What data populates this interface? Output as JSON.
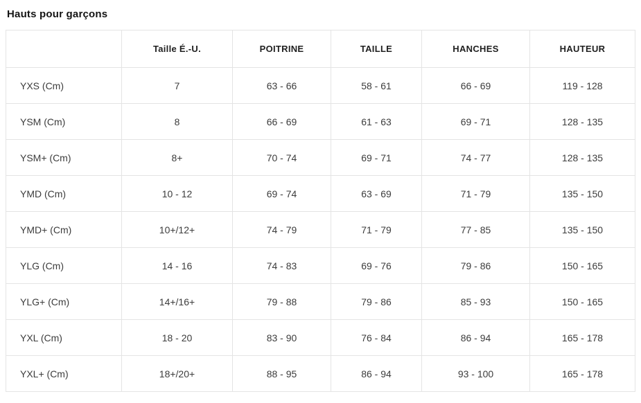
{
  "page": {
    "title": "Hauts pour garçons"
  },
  "colors": {
    "border": "#e4e4e4",
    "heading_text": "#141414",
    "header_text": "#1f1f1f",
    "cell_text": "#3c3c3c",
    "background": "#ffffff"
  },
  "table": {
    "columns": [
      "",
      "Taille É.-U.",
      "POITRINE",
      "TAILLE",
      "HANCHES",
      "HAUTEUR"
    ],
    "rows": [
      {
        "cells": [
          "YXS (Cm)",
          "7",
          "63 - 66",
          "58 - 61",
          "66 - 69",
          "119 - 128"
        ]
      },
      {
        "cells": [
          "YSM (Cm)",
          "8",
          "66 - 69",
          "61 - 63",
          "69 - 71",
          "128 - 135"
        ]
      },
      {
        "cells": [
          "YSM+ (Cm)",
          "8+",
          "70 - 74",
          "69 - 71",
          "74 - 77",
          "128 - 135"
        ]
      },
      {
        "cells": [
          "YMD (Cm)",
          "10 - 12",
          "69 - 74",
          "63 - 69",
          "71 - 79",
          "135 - 150"
        ]
      },
      {
        "cells": [
          "YMD+ (Cm)",
          "10+/12+",
          "74 - 79",
          "71 - 79",
          "77 - 85",
          "135 - 150"
        ]
      },
      {
        "cells": [
          "YLG (Cm)",
          "14 - 16",
          "74 - 83",
          "69 - 76",
          "79 - 86",
          "150 - 165"
        ]
      },
      {
        "cells": [
          "YLG+ (Cm)",
          "14+/16+",
          "79 - 88",
          "79 - 86",
          "85 - 93",
          "150 - 165"
        ]
      },
      {
        "cells": [
          "YXL (Cm)",
          "18 - 20",
          "83 - 90",
          "76 - 84",
          "86 - 94",
          "165 - 178"
        ]
      },
      {
        "cells": [
          "YXL+ (Cm)",
          "18+/20+",
          "88 - 95",
          "86 - 94",
          "93 - 100",
          "165 - 178"
        ]
      }
    ]
  }
}
